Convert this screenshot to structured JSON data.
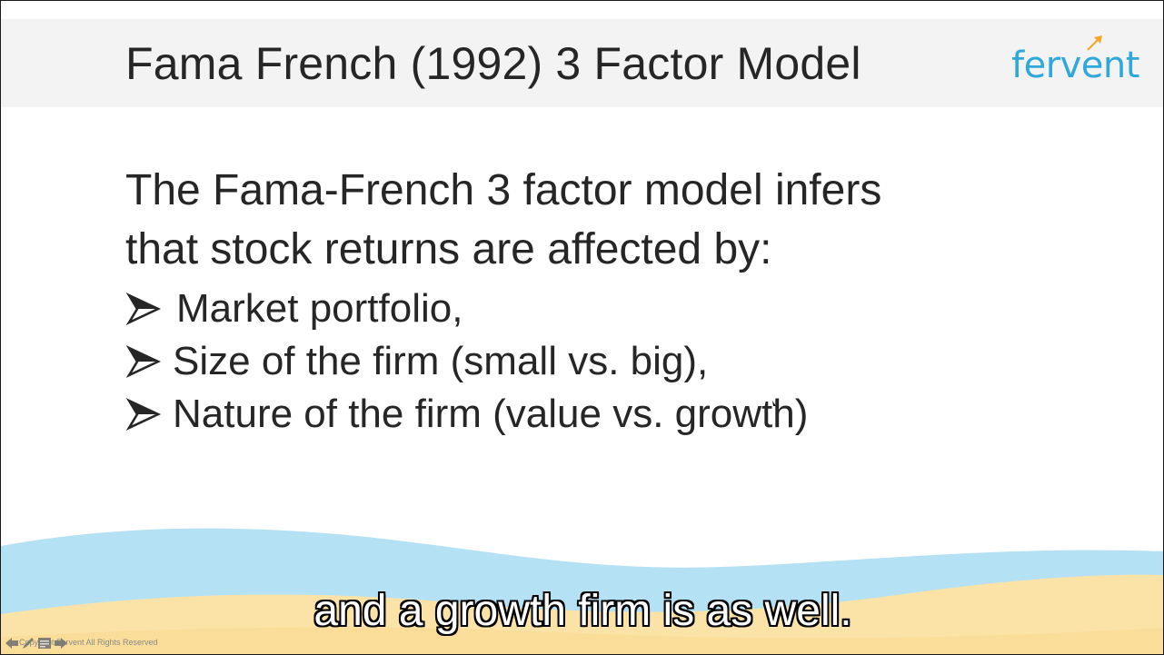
{
  "slide": {
    "title": "Fama French (1992) 3 Factor Model",
    "logo_text": "fervent",
    "body_line1": "The Fama-French 3 factor model infers",
    "body_line2": "that stock returns are affected by:",
    "bullets": [
      "Market portfolio,",
      "Size of the firm (small vs. big),",
      "Nature of the firm (value vs. growth)"
    ],
    "copyright": "Copyright Fervent All Rights Reserved"
  },
  "subtitle": "and a growth firm is as well.",
  "colors": {
    "title_bar": "#f3f3f3",
    "text": "#262626",
    "logo": "#2fa8dc",
    "logo_arrow": "#f5a623",
    "wave_blue": "#b4e1f3",
    "wave_sand": "#fbe3a7"
  },
  "icons": {
    "bullet": "arrowhead-icon",
    "nav_prev": "previous-slide-icon",
    "nav_pen": "pen-icon",
    "nav_menu": "menu-icon",
    "nav_next": "next-slide-icon"
  }
}
